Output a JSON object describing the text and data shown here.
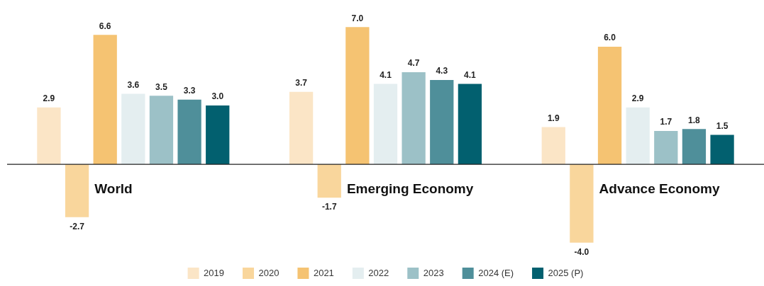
{
  "chart_data": {
    "type": "bar",
    "categories": [
      "World",
      "Emerging Economy",
      "Advance Economy"
    ],
    "series": [
      {
        "name": "2019",
        "color": "#fbe5c6",
        "values": [
          2.9,
          3.7,
          1.9
        ],
        "value_labels": [
          "2.9",
          "3.7",
          "1.9"
        ]
      },
      {
        "name": "2020",
        "color": "#f9d69c",
        "values": [
          -2.7,
          -1.7,
          -4
        ],
        "value_labels": [
          "-2.7",
          "-1.7",
          "-4.0"
        ]
      },
      {
        "name": "2021",
        "color": "#f5c372",
        "values": [
          6.6,
          7,
          6
        ],
        "value_labels": [
          "6.6",
          "7.0",
          "6.0"
        ]
      },
      {
        "name": "2022",
        "color": "#e4eef0",
        "values": [
          3.6,
          4.1,
          2.9
        ],
        "value_labels": [
          "3.6",
          "4.1",
          "2.9"
        ]
      },
      {
        "name": "2023",
        "color": "#9cc1c7",
        "values": [
          3.5,
          4.7,
          1.7
        ],
        "value_labels": [
          "3.5",
          "4.7",
          "1.7"
        ]
      },
      {
        "name": "2024 (E)",
        "color": "#4f8f9a",
        "values": [
          3.3,
          4.3,
          1.8
        ],
        "value_labels": [
          "3.3",
          "4.3",
          "1.8"
        ]
      },
      {
        "name": "2025 (P)",
        "color": "#02606f",
        "values": [
          3,
          4.1,
          1.5
        ],
        "value_labels": [
          "3.0",
          "4.1",
          "1.5"
        ]
      }
    ],
    "legend": "bottom",
    "grid": false
  }
}
